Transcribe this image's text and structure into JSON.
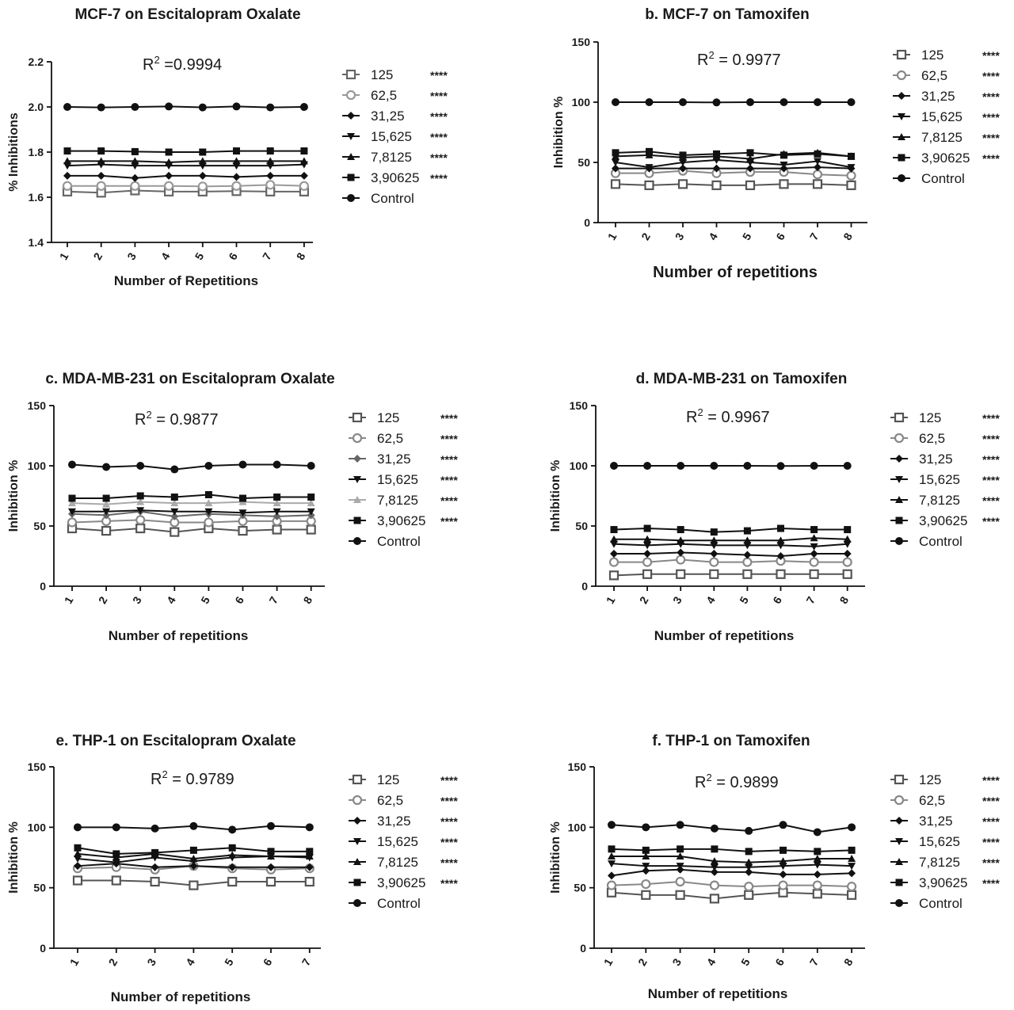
{
  "colors": {
    "black": "#111111",
    "dark_gray": "#555555",
    "mid_gray": "#777777",
    "light_gray": "#999999",
    "pale_gray": "#aaaaaa"
  },
  "chart_data": [
    {
      "type": "line",
      "title": "MCF-7 on Escitalopram Oxalate",
      "xlabel": "Number of Repetitions",
      "ylabel": "% Inhibitions",
      "r2_prefix": "R",
      "r2_sup": "2",
      "r2_value": " =0.9994",
      "x": [
        1,
        2,
        3,
        4,
        5,
        6,
        7,
        8
      ],
      "ylim": [
        1.4,
        2.2
      ],
      "yticks": [
        "1.4",
        "1.6",
        "1.8",
        "2.0",
        "2.2"
      ],
      "ytick_values": [
        1.4,
        1.6,
        1.8,
        2.0,
        2.2
      ],
      "series": [
        {
          "name": "125",
          "stars": "****",
          "marker": "open-square",
          "color": "#666666",
          "values": [
            1.625,
            1.62,
            1.63,
            1.625,
            1.625,
            1.627,
            1.625,
            1.625
          ]
        },
        {
          "name": "62,5",
          "stars": "****",
          "marker": "open-circle",
          "color": "#999999",
          "values": [
            1.65,
            1.65,
            1.65,
            1.65,
            1.648,
            1.65,
            1.655,
            1.65
          ]
        },
        {
          "name": "31,25",
          "stars": "****",
          "marker": "diamond",
          "color": "#111111",
          "values": [
            1.695,
            1.695,
            1.685,
            1.695,
            1.695,
            1.69,
            1.695,
            1.695
          ]
        },
        {
          "name": "15,625",
          "stars": "****",
          "marker": "triangle-down",
          "color": "#111111",
          "values": [
            1.74,
            1.745,
            1.74,
            1.74,
            1.74,
            1.74,
            1.74,
            1.745
          ]
        },
        {
          "name": "7,8125",
          "stars": "****",
          "marker": "triangle-up",
          "color": "#111111",
          "values": [
            1.76,
            1.76,
            1.76,
            1.755,
            1.76,
            1.76,
            1.76,
            1.76
          ]
        },
        {
          "name": "3,90625",
          "stars": "****",
          "marker": "square",
          "color": "#111111",
          "values": [
            1.805,
            1.805,
            1.802,
            1.8,
            1.8,
            1.805,
            1.805,
            1.805
          ]
        },
        {
          "name": "Control",
          "stars": "",
          "marker": "circle",
          "color": "#111111",
          "values": [
            2.0,
            1.998,
            2.0,
            2.002,
            1.998,
            2.002,
            1.998,
            2.0
          ]
        }
      ]
    },
    {
      "type": "line",
      "title": "b. MCF-7 on Tamoxifen",
      "xlabel": "Number of repetitions",
      "ylabel": "Inhibition %",
      "r2_prefix": "R",
      "r2_sup": "2",
      "r2_value": " = 0.9977",
      "x": [
        1,
        2,
        3,
        4,
        5,
        6,
        7,
        8
      ],
      "ylim": [
        0,
        150
      ],
      "yticks": [
        "0",
        "50",
        "100",
        "150"
      ],
      "ytick_values": [
        0,
        50,
        100,
        150
      ],
      "series": [
        {
          "name": "125",
          "stars": "****",
          "marker": "open-square",
          "color": "#555555",
          "values": [
            32,
            31,
            32,
            31,
            31,
            32,
            32,
            31
          ]
        },
        {
          "name": "62,5",
          "stars": "****",
          "marker": "open-circle",
          "color": "#888888",
          "values": [
            41,
            41,
            43,
            41,
            42,
            42,
            40,
            39
          ]
        },
        {
          "name": "31,25",
          "stars": "****",
          "marker": "diamond",
          "color": "#111111",
          "values": [
            45,
            45,
            45,
            45,
            45,
            45,
            46,
            45
          ]
        },
        {
          "name": "15,625",
          "stars": "****",
          "marker": "triangle-down",
          "color": "#111111",
          "values": [
            50,
            46,
            50,
            52,
            50,
            48,
            51,
            46
          ]
        },
        {
          "name": "7,8125",
          "stars": "****",
          "marker": "triangle-up",
          "color": "#111111",
          "values": [
            55,
            56,
            54,
            55,
            53,
            57,
            58,
            55
          ]
        },
        {
          "name": "3,90625",
          "stars": "****",
          "marker": "square",
          "color": "#111111",
          "values": [
            58,
            59,
            56,
            57,
            58,
            56,
            57,
            55
          ]
        },
        {
          "name": "Control",
          "stars": "",
          "marker": "circle",
          "color": "#111111",
          "values": [
            100,
            100,
            100,
            99.8,
            100,
            100,
            100,
            100
          ]
        }
      ]
    },
    {
      "type": "line",
      "title": "c. MDA-MB-231 on Escitalopram Oxalate",
      "xlabel": "Number of repetitions",
      "ylabel": "Inhibition %",
      "r2_prefix": "R",
      "r2_sup": "2",
      "r2_value": " = 0.9877",
      "x": [
        1,
        2,
        3,
        4,
        5,
        6,
        7,
        8
      ],
      "ylim": [
        0,
        150
      ],
      "yticks": [
        "0",
        "50",
        "100",
        "150"
      ],
      "ytick_values": [
        0,
        50,
        100,
        150
      ],
      "series": [
        {
          "name": "125",
          "stars": "****",
          "marker": "open-square",
          "color": "#555555",
          "values": [
            48,
            46,
            48,
            45,
            48,
            46,
            47,
            47
          ]
        },
        {
          "name": "62,5",
          "stars": "****",
          "marker": "open-circle",
          "color": "#888888",
          "values": [
            53,
            54,
            55,
            53,
            53,
            54,
            54,
            54
          ]
        },
        {
          "name": "31,25",
          "stars": "****",
          "marker": "diamond",
          "color": "#666666",
          "values": [
            60,
            59,
            62,
            58,
            60,
            59,
            58,
            59
          ]
        },
        {
          "name": "15,625",
          "stars": "****",
          "marker": "triangle-down",
          "color": "#111111",
          "values": [
            62,
            62,
            63,
            62,
            62,
            61,
            62,
            62
          ]
        },
        {
          "name": "7,8125",
          "stars": "****",
          "marker": "triangle-up",
          "color": "#aaaaaa",
          "values": [
            69,
            68,
            70,
            69,
            69,
            70,
            69,
            69
          ]
        },
        {
          "name": "3,90625",
          "stars": "****",
          "marker": "square",
          "color": "#111111",
          "values": [
            73,
            73,
            75,
            74,
            76,
            73,
            74,
            74
          ]
        },
        {
          "name": "Control",
          "stars": "",
          "marker": "circle",
          "color": "#111111",
          "values": [
            101,
            99,
            100,
            97,
            100,
            101,
            101,
            100
          ]
        }
      ]
    },
    {
      "type": "line",
      "title": "d. MDA-MB-231 on Tamoxifen",
      "xlabel": "Number of repetitions",
      "ylabel": "Inhibition %",
      "r2_prefix": "R",
      "r2_sup": "2",
      "r2_value": " = 0.9967",
      "x": [
        1,
        2,
        3,
        4,
        5,
        6,
        7,
        8
      ],
      "ylim": [
        0,
        150
      ],
      "yticks": [
        "0",
        "50",
        "100",
        "150"
      ],
      "ytick_values": [
        0,
        50,
        100,
        150
      ],
      "series": [
        {
          "name": "125",
          "stars": "****",
          "marker": "open-square",
          "color": "#555555",
          "values": [
            9,
            10,
            10,
            10,
            10,
            10,
            10,
            10
          ]
        },
        {
          "name": "62,5",
          "stars": "****",
          "marker": "open-circle",
          "color": "#888888",
          "values": [
            20,
            20,
            22,
            20,
            20,
            21,
            20,
            20
          ]
        },
        {
          "name": "31,25",
          "stars": "****",
          "marker": "diamond",
          "color": "#111111",
          "values": [
            27,
            27,
            28,
            27,
            26,
            25,
            27,
            27
          ]
        },
        {
          "name": "15,625",
          "stars": "****",
          "marker": "triangle-down",
          "color": "#111111",
          "values": [
            35,
            34,
            35,
            34,
            34,
            34,
            33,
            35
          ]
        },
        {
          "name": "7,8125",
          "stars": "****",
          "marker": "triangle-up",
          "color": "#111111",
          "values": [
            39,
            39,
            38,
            38,
            38,
            38,
            40,
            39
          ]
        },
        {
          "name": "3,90625",
          "stars": "****",
          "marker": "square",
          "color": "#111111",
          "values": [
            47,
            48,
            47,
            45,
            46,
            48,
            47,
            47
          ]
        },
        {
          "name": "Control",
          "stars": "",
          "marker": "circle",
          "color": "#111111",
          "values": [
            100,
            100,
            100,
            100,
            100,
            99.8,
            100,
            100
          ]
        }
      ]
    },
    {
      "type": "line",
      "title": "e. THP-1 on Escitalopram Oxalate",
      "xlabel": "Number of repetitions",
      "ylabel": "Inhibition %",
      "r2_prefix": "R",
      "r2_sup": "2",
      "r2_value": " = 0.9789",
      "x": [
        1,
        2,
        3,
        4,
        5,
        6,
        7
      ],
      "ylim": [
        0,
        150
      ],
      "yticks": [
        "0",
        "50",
        "100",
        "150"
      ],
      "ytick_values": [
        0,
        50,
        100,
        150
      ],
      "series": [
        {
          "name": "125",
          "stars": "****",
          "marker": "open-square",
          "color": "#555555",
          "values": [
            56,
            56,
            55,
            52,
            55,
            55,
            55
          ]
        },
        {
          "name": "62,5",
          "stars": "****",
          "marker": "open-circle",
          "color": "#888888",
          "values": [
            66,
            67,
            65,
            68,
            66,
            65,
            66
          ]
        },
        {
          "name": "31,25",
          "stars": "****",
          "marker": "diamond",
          "color": "#111111",
          "values": [
            68,
            70,
            67,
            68,
            67,
            67,
            67
          ]
        },
        {
          "name": "15,625",
          "stars": "****",
          "marker": "triangle-down",
          "color": "#111111",
          "values": [
            74,
            71,
            75,
            72,
            75,
            76,
            75
          ]
        },
        {
          "name": "7,8125",
          "stars": "****",
          "marker": "triangle-up",
          "color": "#111111",
          "values": [
            78,
            75,
            78,
            74,
            77,
            76,
            76
          ]
        },
        {
          "name": "3,90625",
          "stars": "****",
          "marker": "square",
          "color": "#111111",
          "values": [
            83,
            78,
            79,
            81,
            83,
            80,
            80
          ]
        },
        {
          "name": "Control",
          "stars": "",
          "marker": "circle",
          "color": "#111111",
          "values": [
            100,
            100,
            99,
            101,
            98,
            101,
            100
          ]
        }
      ]
    },
    {
      "type": "line",
      "title": "f. THP-1 on Tamoxifen",
      "xlabel": "Number of repetitions",
      "ylabel": "Inhibition %",
      "r2_prefix": "R",
      "r2_sup": "2",
      "r2_value": " = 0.9899",
      "x": [
        1,
        2,
        3,
        4,
        5,
        6,
        7,
        8
      ],
      "ylim": [
        0,
        150
      ],
      "yticks": [
        "0",
        "50",
        "100",
        "150"
      ],
      "ytick_values": [
        0,
        50,
        100,
        150
      ],
      "series": [
        {
          "name": "125",
          "stars": "****",
          "marker": "open-square",
          "color": "#555555",
          "values": [
            46,
            44,
            44,
            41,
            44,
            46,
            45,
            44
          ]
        },
        {
          "name": "62,5",
          "stars": "****",
          "marker": "open-circle",
          "color": "#888888",
          "values": [
            52,
            53,
            55,
            52,
            51,
            52,
            52,
            51
          ]
        },
        {
          "name": "31,25",
          "stars": "****",
          "marker": "diamond",
          "color": "#111111",
          "values": [
            60,
            64,
            65,
            63,
            63,
            61,
            61,
            62
          ]
        },
        {
          "name": "15,625",
          "stars": "****",
          "marker": "triangle-down",
          "color": "#111111",
          "values": [
            70,
            68,
            68,
            67,
            67,
            68,
            69,
            68
          ]
        },
        {
          "name": "7,8125",
          "stars": "****",
          "marker": "triangle-up",
          "color": "#111111",
          "values": [
            76,
            76,
            76,
            72,
            71,
            72,
            74,
            74
          ]
        },
        {
          "name": "3,90625",
          "stars": "****",
          "marker": "square",
          "color": "#111111",
          "values": [
            82,
            81,
            82,
            82,
            80,
            81,
            80,
            81
          ]
        },
        {
          "name": "Control",
          "stars": "",
          "marker": "circle",
          "color": "#111111",
          "values": [
            102,
            100,
            102,
            99,
            97,
            102,
            96,
            100
          ]
        }
      ]
    }
  ]
}
